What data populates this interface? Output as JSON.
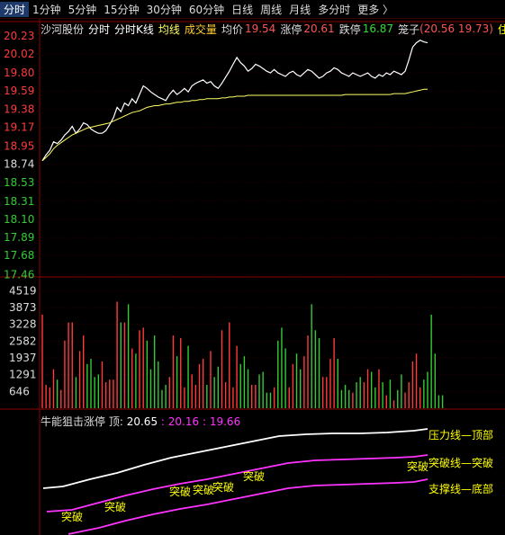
{
  "tabs": [
    {
      "label": "分时",
      "active": true
    },
    {
      "label": "1分钟"
    },
    {
      "label": "5分钟"
    },
    {
      "label": "15分钟"
    },
    {
      "label": "30分钟"
    },
    {
      "label": "60分钟"
    },
    {
      "label": "日线"
    },
    {
      "label": "周线"
    },
    {
      "label": "月线"
    },
    {
      "label": "多分时"
    },
    {
      "label": "更多 〉"
    }
  ],
  "info": {
    "stock": "沙河股份",
    "mode1": "分时",
    "mode2": "分时K线",
    "avg_label": "均线",
    "vol_label": "成交量",
    "avgprice_label": "均价",
    "avgprice": "19.54",
    "limitup_label": "涨停",
    "limitup": "20.61",
    "limitdown_label": "跌停",
    "limitdown": "16.87",
    "cage_label": "笼子",
    "cage": "(20.56 19.73)",
    "extra": "住宅开"
  },
  "indicator": {
    "name": "牛能狙击涨停",
    "top_label": "顶:",
    "v1": "20.65",
    "sep1": ":",
    "v2": "20.16",
    "sep2": ":",
    "v3": "19.66"
  },
  "annotations": {
    "top": "压力线—顶部",
    "mid": "突破线—突破",
    "bot": "支撑线—底部",
    "breakout": "突破"
  },
  "colors": {
    "up": "#ff3b3b",
    "down": "#33cc33",
    "axis": "#8b0000",
    "avg": "#ffff66",
    "magenta": "#ff33ff",
    "label": "#ffff00"
  },
  "chart_data": {
    "type": "line",
    "price_ticks": [
      "20.23",
      "20.02",
      "19.80",
      "19.59",
      "19.38",
      "19.17",
      "18.95",
      "18.74",
      "18.53",
      "18.31",
      "18.10",
      "17.89",
      "17.68",
      "17.46"
    ],
    "price_range": [
      17.4,
      20.25
    ],
    "volume_ticks": [
      "4519",
      "3873",
      "3228",
      "2582",
      "1937",
      "1291",
      "646"
    ],
    "volume_max": 4600,
    "price": [
      18.78,
      18.85,
      18.9,
      19.0,
      18.98,
      19.02,
      19.08,
      19.12,
      19.18,
      19.1,
      19.15,
      19.22,
      19.2,
      19.15,
      19.12,
      19.1,
      19.1,
      19.13,
      19.2,
      19.28,
      19.4,
      19.35,
      19.45,
      19.42,
      19.5,
      19.45,
      19.55,
      19.65,
      19.62,
      19.58,
      19.55,
      19.52,
      19.5,
      19.48,
      19.55,
      19.6,
      19.55,
      19.58,
      19.62,
      19.58,
      19.65,
      19.68,
      19.7,
      19.72,
      19.68,
      19.7,
      19.65,
      19.62,
      19.68,
      19.75,
      19.82,
      19.9,
      19.98,
      19.92,
      19.88,
      19.82,
      19.85,
      19.9,
      19.88,
      19.85,
      19.82,
      19.8,
      19.84,
      19.8,
      19.78,
      19.76,
      19.8,
      19.82,
      19.78,
      19.76,
      19.8,
      19.84,
      19.82,
      19.78,
      19.74,
      19.76,
      19.8,
      19.82,
      19.86,
      19.84,
      19.8,
      19.78,
      19.76,
      19.8,
      19.78,
      19.76,
      19.78,
      19.8,
      19.76,
      19.74,
      19.78,
      19.76,
      19.8,
      19.78,
      19.82,
      19.8,
      19.78,
      19.82,
      19.95,
      20.1,
      20.15,
      20.18,
      20.16,
      20.15
    ],
    "avg": [
      18.78,
      18.82,
      18.86,
      18.92,
      18.96,
      18.99,
      19.02,
      19.05,
      19.08,
      19.1,
      19.12,
      19.14,
      19.16,
      19.17,
      19.18,
      19.19,
      19.2,
      19.21,
      19.22,
      19.24,
      19.26,
      19.28,
      19.3,
      19.32,
      19.34,
      19.35,
      19.36,
      19.38,
      19.4,
      19.41,
      19.42,
      19.42,
      19.43,
      19.44,
      19.44,
      19.45,
      19.46,
      19.46,
      19.47,
      19.47,
      19.48,
      19.48,
      19.49,
      19.49,
      19.5,
      19.5,
      19.5,
      19.5,
      19.51,
      19.51,
      19.52,
      19.52,
      19.53,
      19.53,
      19.53,
      19.54,
      19.54,
      19.54,
      19.54,
      19.54,
      19.54,
      19.54,
      19.54,
      19.54,
      19.54,
      19.54,
      19.54,
      19.54,
      19.54,
      19.54,
      19.54,
      19.54,
      19.54,
      19.54,
      19.54,
      19.54,
      19.54,
      19.54,
      19.54,
      19.54,
      19.54,
      19.55,
      19.55,
      19.55,
      19.55,
      19.55,
      19.55,
      19.55,
      19.55,
      19.55,
      19.55,
      19.55,
      19.55,
      19.55,
      19.56,
      19.56,
      19.56,
      19.56,
      19.57,
      19.58,
      19.59,
      19.6,
      19.61,
      19.61
    ],
    "volume": [
      3600,
      900,
      800,
      1500,
      1100,
      700,
      2600,
      3300,
      3300,
      1200,
      2200,
      2800,
      1700,
      1900,
      1200,
      1300,
      1800,
      1000,
      1100,
      1100,
      4100,
      3300,
      3300,
      4000,
      2300,
      2100,
      3000,
      3100,
      2600,
      1500,
      2800,
      1800,
      700,
      900,
      1200,
      2800,
      2000,
      2700,
      800,
      2400,
      1300,
      900,
      1700,
      1900,
      900,
      2200,
      1200,
      1600,
      3000,
      1000,
      3300,
      800,
      2400,
      1700,
      2000,
      1500,
      900,
      900,
      1300,
      1400,
      600,
      600,
      800,
      2600,
      3100,
      2300,
      800,
      1700,
      2100,
      1500,
      2000,
      2800,
      4000,
      3000,
      2700,
      1200,
      1200,
      1900,
      2700,
      1900,
      700,
      900,
      700,
      600,
      1000,
      1200,
      1000,
      1500,
      1400,
      800,
      1500,
      1000,
      500,
      1100,
      300,
      700,
      1300,
      600,
      1000,
      1800,
      2100,
      800,
      1100,
      1400,
      3600,
      2100,
      500,
      500
    ]
  }
}
